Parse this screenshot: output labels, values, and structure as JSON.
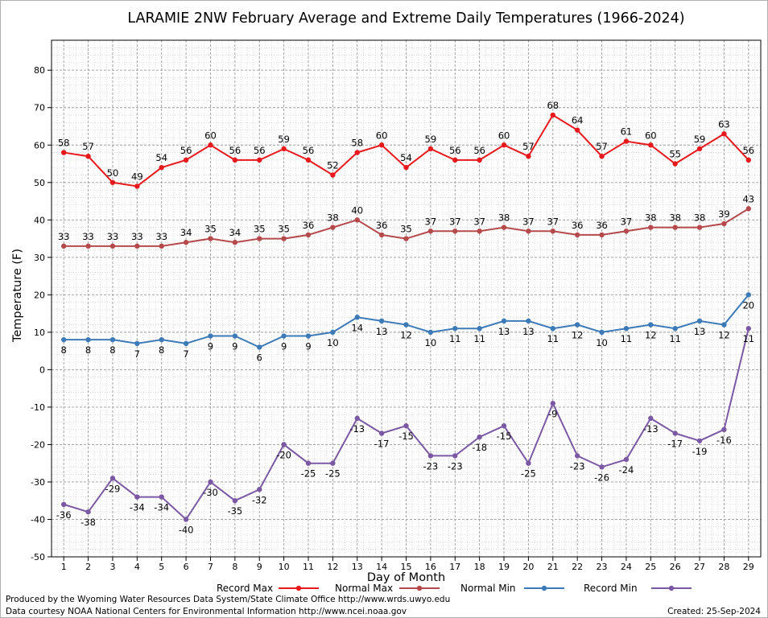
{
  "chart_data": {
    "type": "line",
    "title": "LARAMIE 2NW February Average and Extreme Daily Temperatures (1966-2024)",
    "xlabel": "Day of Month",
    "ylabel": "Temperature (F)",
    "ylim": [
      -50,
      88
    ],
    "yticks": [
      -50,
      -40,
      -30,
      -20,
      -10,
      0,
      10,
      20,
      30,
      40,
      50,
      60,
      70,
      80
    ],
    "xlim": [
      0.5,
      29.5
    ],
    "x": [
      1,
      2,
      3,
      4,
      5,
      6,
      7,
      8,
      9,
      10,
      11,
      12,
      13,
      14,
      15,
      16,
      17,
      18,
      19,
      20,
      21,
      22,
      23,
      24,
      25,
      26,
      27,
      28,
      29
    ],
    "grid": true,
    "legend": "bottom",
    "series": [
      {
        "name": "Record Max",
        "color": "#e8191c",
        "label_pos": "above",
        "values": [
          58,
          57,
          50,
          49,
          54,
          56,
          60,
          56,
          56,
          59,
          56,
          52,
          58,
          60,
          54,
          59,
          56,
          56,
          60,
          57,
          68,
          64,
          57,
          61,
          60,
          55,
          59,
          63,
          56
        ]
      },
      {
        "name": "Normal Max",
        "color": "#b5494b",
        "label_pos": "above",
        "values": [
          33,
          33,
          33,
          33,
          33,
          34,
          35,
          34,
          35,
          35,
          36,
          38,
          40,
          36,
          35,
          37,
          37,
          37,
          38,
          37,
          37,
          36,
          36,
          37,
          38,
          38,
          38,
          39,
          43
        ]
      },
      {
        "name": "Normal Min",
        "color": "#3d7ab8",
        "label_pos": "below",
        "values": [
          8,
          8,
          8,
          7,
          8,
          7,
          9,
          9,
          6,
          9,
          9,
          10,
          14,
          13,
          12,
          10,
          11,
          11,
          13,
          13,
          11,
          12,
          10,
          11,
          12,
          11,
          13,
          12,
          20
        ]
      },
      {
        "name": "Record Min",
        "color": "#7b58a3",
        "label_pos": "below",
        "values": [
          -36,
          -38,
          -29,
          -34,
          -34,
          -40,
          -30,
          -35,
          -32,
          -20,
          -25,
          -25,
          -13,
          -17,
          -15,
          -23,
          -23,
          -18,
          -15,
          -25,
          -9,
          -23,
          -26,
          -24,
          -13,
          -17,
          -19,
          -16,
          11
        ]
      }
    ]
  },
  "footer": {
    "credit_line1": "Produced by the Wyoming Water Resources Data System/State Climate Office http://www.wrds.uwyo.edu",
    "credit_line2": "Data courtesy NOAA National Centers for Environmental Information http://www.ncei.noaa.gov",
    "created": "Created:  25-Sep-2024"
  }
}
